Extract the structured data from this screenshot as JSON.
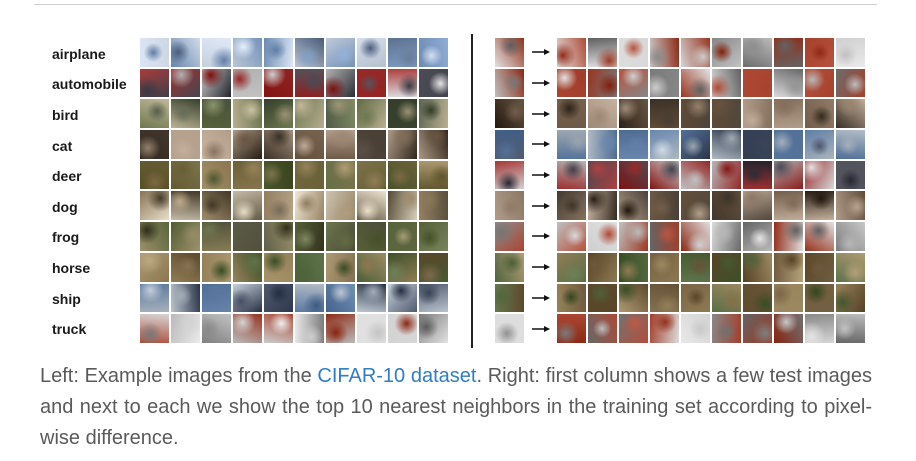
{
  "left_panel": {
    "classes": [
      "airplane",
      "automobile",
      "bird",
      "cat",
      "deer",
      "dog",
      "frog",
      "horse",
      "ship",
      "truck"
    ],
    "samples_per_class": 10
  },
  "right_panel": {
    "test_images": 10,
    "neighbors_per_test": 10
  },
  "caption": {
    "prefix": "Left: Example images from the ",
    "link_text": "CIFAR-10 dataset",
    "suffix": ". Right: first column shows a few test images and next to each we show the top 10 nearest neighbors in the training set according to pixel-wise difference."
  },
  "colors": {
    "caption_text": "#5a5a5a",
    "link": "#2f7dc4",
    "divider": "#222222"
  }
}
